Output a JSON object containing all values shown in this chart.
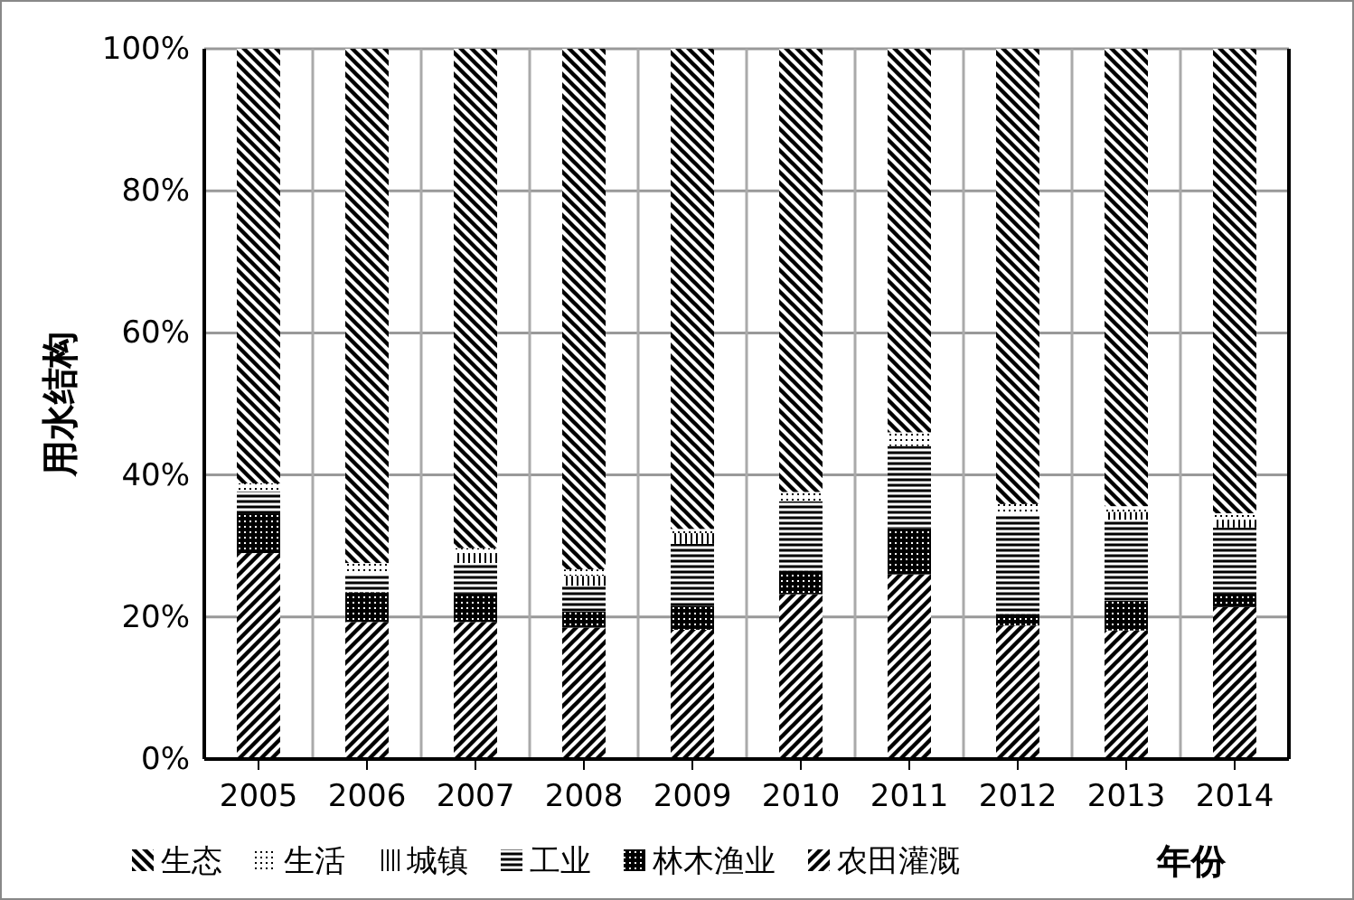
{
  "chart_data": {
    "type": "bar",
    "stacked": true,
    "ylabel": "用水结构",
    "xlabel": "年份",
    "categories": [
      "2005",
      "2006",
      "2007",
      "2008",
      "2009",
      "2010",
      "2011",
      "2012",
      "2013",
      "2014"
    ],
    "series": [
      {
        "name": "农田灌溉",
        "color": "#000000",
        "values": [
          29.0,
          19.3,
          19.3,
          18.5,
          18.2,
          23.2,
          26.0,
          18.8,
          18.1,
          21.4
        ]
      },
      {
        "name": "林木渔业",
        "color": "#000000",
        "values": [
          5.6,
          4.2,
          4.0,
          2.3,
          3.4,
          3.3,
          6.5,
          1.6,
          4.2,
          1.9
        ]
      },
      {
        "name": "工业",
        "color": "#000000",
        "values": [
          3.1,
          2.6,
          4.3,
          3.6,
          8.7,
          9.8,
          11.6,
          14.0,
          11.4,
          9.3
        ]
      },
      {
        "name": "城镇",
        "color": "#000000",
        "values": [
          0,
          0,
          1.4,
          1.4,
          1.5,
          0,
          0,
          0,
          1.1,
          1.1
        ]
      },
      {
        "name": "生活",
        "color": "#000000",
        "values": [
          1.1,
          1.5,
          0.7,
          0.9,
          0.6,
          1.3,
          1.9,
          1.5,
          0.8,
          0.9
        ]
      },
      {
        "name": "生态",
        "color": "#000000",
        "values": [
          61.2,
          72.4,
          70.3,
          73.3,
          67.6,
          62.4,
          54.0,
          64.1,
          64.4,
          65.4
        ]
      }
    ],
    "ylim": [
      0,
      100
    ],
    "yticks": [
      {
        "value": 0,
        "label": "0%"
      },
      {
        "value": 20,
        "label": "20%"
      },
      {
        "value": 40,
        "label": "40%"
      },
      {
        "value": 60,
        "label": "60%"
      },
      {
        "value": 80,
        "label": "80%"
      },
      {
        "value": 100,
        "label": "100%"
      }
    ],
    "grid": true,
    "legend": "bottom"
  }
}
